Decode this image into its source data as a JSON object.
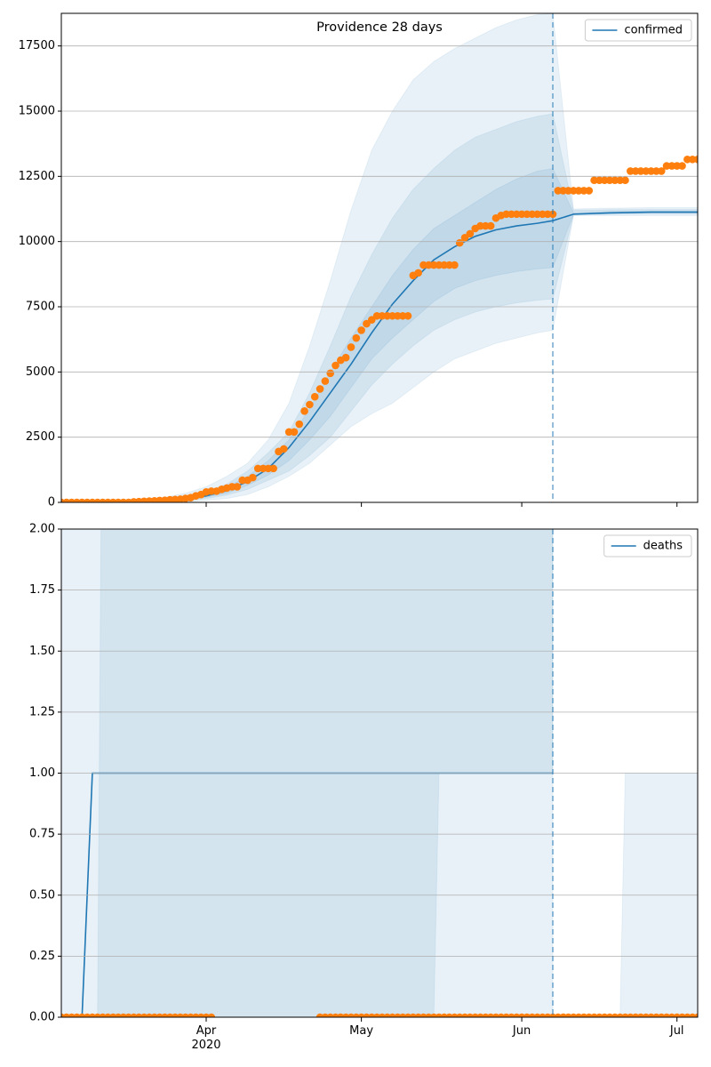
{
  "chart_data": [
    {
      "type": "line",
      "title": "Providence 28 days",
      "xlim": [
        64,
        187
      ],
      "ylim": [
        0,
        18750
      ],
      "yticks": [
        0,
        2500,
        5000,
        7500,
        10000,
        12500,
        15000,
        17500
      ],
      "grid": true,
      "legend": "upper right",
      "forecast_start": 159,
      "band_color": "#1f77b4",
      "series": [
        {
          "name": "confirmed",
          "color": "#1f77b4",
          "x": [
            64,
            70,
            76,
            82,
            88,
            92,
            96,
            100,
            104,
            108,
            112,
            116,
            120,
            124,
            128,
            132,
            136,
            140,
            144,
            148,
            152,
            156,
            159,
            163,
            170,
            178,
            187
          ],
          "values": [
            0,
            0,
            5,
            30,
            100,
            250,
            450,
            800,
            1300,
            2100,
            3100,
            4200,
            5300,
            6500,
            7600,
            8500,
            9300,
            9800,
            10200,
            10450,
            10600,
            10700,
            10800,
            11050,
            11100,
            11130,
            11130
          ]
        }
      ],
      "bands": [
        {
          "x": [
            64,
            70,
            76,
            82,
            88,
            92,
            96,
            100,
            104,
            108,
            112,
            116,
            120,
            124,
            128,
            132,
            136,
            140,
            144,
            148,
            152,
            156,
            159,
            163,
            170,
            178,
            187
          ],
          "lower": [
            0,
            0,
            0,
            0,
            30,
            80,
            150,
            300,
            600,
            1000,
            1500,
            2200,
            2900,
            3400,
            3800,
            4400,
            5000,
            5500,
            5800,
            6100,
            6300,
            6500,
            6600,
            11000,
            11000,
            11000,
            11000
          ],
          "upper": [
            0,
            10,
            40,
            120,
            350,
            600,
            1000,
            1500,
            2400,
            3800,
            6000,
            8500,
            11200,
            13500,
            15000,
            16200,
            16900,
            17400,
            17800,
            18200,
            18500,
            18700,
            18750,
            11250,
            11280,
            11300,
            11300
          ]
        },
        {
          "x": [
            64,
            70,
            76,
            82,
            88,
            92,
            96,
            100,
            104,
            108,
            112,
            116,
            120,
            124,
            128,
            132,
            136,
            140,
            144,
            148,
            152,
            156,
            159,
            163,
            170,
            178,
            187
          ],
          "lower": [
            0,
            0,
            0,
            10,
            60,
            150,
            280,
            500,
            850,
            1200,
            1800,
            2500,
            3500,
            4500,
            5300,
            6000,
            6600,
            7000,
            7300,
            7500,
            7650,
            7750,
            7800,
            11020,
            11050,
            11070,
            11070
          ],
          "upper": [
            0,
            5,
            20,
            70,
            200,
            420,
            700,
            1200,
            1900,
            2700,
            4200,
            6000,
            7900,
            9500,
            10900,
            12000,
            12800,
            13500,
            14000,
            14300,
            14600,
            14800,
            14900,
            11200,
            11220,
            11230,
            11230
          ]
        },
        {
          "x": [
            64,
            70,
            76,
            82,
            88,
            92,
            96,
            100,
            104,
            108,
            112,
            116,
            120,
            124,
            128,
            132,
            136,
            140,
            144,
            148,
            152,
            156,
            159,
            163,
            170,
            178,
            187
          ],
          "lower": [
            0,
            0,
            2,
            20,
            80,
            200,
            350,
            650,
            1050,
            1600,
            2400,
            3300,
            4400,
            5500,
            6300,
            7000,
            7700,
            8200,
            8500,
            8700,
            8850,
            8950,
            9000,
            11040,
            11080,
            11100,
            11100
          ],
          "upper": [
            0,
            2,
            10,
            45,
            140,
            320,
            580,
            1000,
            1600,
            2400,
            3600,
            5000,
            6300,
            7500,
            8700,
            9700,
            10500,
            11000,
            11500,
            12000,
            12400,
            12700,
            12800,
            11100,
            11150,
            11170,
            11170
          ]
        }
      ],
      "observed": {
        "color": "#ff7f0e",
        "x": [
          64,
          65,
          66,
          67,
          68,
          69,
          70,
          71,
          72,
          73,
          74,
          75,
          76,
          77,
          78,
          79,
          80,
          81,
          82,
          83,
          84,
          85,
          86,
          87,
          88,
          89,
          90,
          91,
          92,
          93,
          94,
          95,
          96,
          97,
          98,
          99,
          100,
          101,
          102,
          103,
          104,
          105,
          106,
          107,
          108,
          109,
          110,
          111,
          112,
          113,
          114,
          115,
          116,
          117,
          118,
          119,
          120,
          121,
          122,
          123,
          124,
          125,
          126,
          127,
          128,
          129,
          130,
          131,
          132,
          133,
          134,
          135,
          136,
          137,
          138,
          139,
          140,
          141,
          142,
          143,
          144,
          145,
          146,
          147,
          148,
          149,
          150,
          151,
          152,
          153,
          154,
          155,
          156,
          157,
          158,
          159,
          160,
          161,
          162,
          163,
          164,
          165,
          166,
          167,
          168,
          169,
          170,
          171,
          172,
          173,
          174,
          175,
          176,
          177,
          178,
          179,
          180,
          181,
          182,
          183,
          184,
          185,
          186,
          187
        ],
        "values": [
          0,
          0,
          0,
          0,
          0,
          0,
          0,
          0,
          0,
          0,
          0,
          0,
          0,
          0,
          20,
          30,
          40,
          50,
          60,
          70,
          80,
          100,
          110,
          120,
          150,
          180,
          250,
          300,
          400,
          430,
          430,
          500,
          550,
          600,
          600,
          850,
          850,
          950,
          1300,
          1300,
          1300,
          1300,
          1950,
          2050,
          2700,
          2700,
          3000,
          3500,
          3750,
          4050,
          4350,
          4650,
          4950,
          5250,
          5450,
          5550,
          5950,
          6300,
          6600,
          6850,
          7000,
          7150,
          7150,
          7150,
          7150,
          7150,
          7150,
          7150,
          8700,
          8800,
          9100,
          9100,
          9100,
          9100,
          9100,
          9100,
          9100,
          9950,
          10150,
          10300,
          10500,
          10600,
          10600,
          10600,
          10900,
          11000,
          11050,
          11050,
          11050,
          11050,
          11050,
          11050,
          11050,
          11050,
          11050,
          11050,
          11950,
          11950,
          11950,
          11950,
          11950,
          11950,
          11950,
          12350,
          12350,
          12350,
          12350,
          12350,
          12350,
          12350,
          12700,
          12700,
          12700,
          12700,
          12700,
          12700,
          12700,
          12900,
          12900,
          12900,
          12900,
          13150,
          13150,
          13150
        ]
      }
    },
    {
      "type": "line",
      "xlim": [
        64,
        187
      ],
      "ylim": [
        0,
        2
      ],
      "xticks": [
        {
          "value": 92,
          "label": "Apr\n2020"
        },
        {
          "value": 122,
          "label": "May"
        },
        {
          "value": 153,
          "label": "Jun"
        },
        {
          "value": 183,
          "label": "Jul"
        }
      ],
      "yticks": [
        {
          "value": 0,
          "label": "0.00"
        },
        {
          "value": 0.25,
          "label": "0.25"
        },
        {
          "value": 0.5,
          "label": "0.50"
        },
        {
          "value": 0.75,
          "label": "0.75"
        },
        {
          "value": 1,
          "label": "1.00"
        },
        {
          "value": 1.25,
          "label": "1.25"
        },
        {
          "value": 1.5,
          "label": "1.50"
        },
        {
          "value": 1.75,
          "label": "1.75"
        },
        {
          "value": 2,
          "label": "2.00"
        }
      ],
      "grid": true,
      "legend": "upper right",
      "forecast_start": 159,
      "band_color": "#1f77b4",
      "series": [
        {
          "name": "deaths",
          "color": "#1f77b4",
          "x": [
            64,
            68,
            70,
            159
          ],
          "values": [
            0,
            0,
            1,
            1
          ]
        }
      ],
      "bands": [
        {
          "x": [
            64,
            159
          ],
          "lower": [
            0,
            0
          ],
          "upper": [
            3,
            3
          ]
        },
        {
          "x": [
            64,
            71,
            72,
            136,
            137,
            159
          ],
          "lower": [
            0,
            0,
            0,
            0,
            1,
            1
          ],
          "upper": [
            0,
            0,
            3,
            3,
            3,
            3
          ]
        },
        {
          "x": [
            159,
            172,
            173,
            187
          ],
          "lower": [
            0,
            0,
            0,
            0
          ],
          "upper": [
            0,
            0,
            1,
            1
          ]
        }
      ],
      "observed": {
        "color": "#ff7f0e",
        "x": [
          64,
          65,
          66,
          67,
          68,
          69,
          70,
          71,
          72,
          73,
          74,
          75,
          76,
          77,
          78,
          79,
          80,
          81,
          82,
          83,
          84,
          85,
          86,
          87,
          88,
          89,
          90,
          91,
          92,
          93,
          94,
          95,
          96,
          97,
          98,
          99,
          100,
          101,
          102,
          103,
          104,
          105,
          106,
          107,
          108,
          109,
          110,
          111,
          112,
          113,
          114,
          115,
          116,
          117,
          118,
          119,
          120,
          121,
          122,
          123,
          124,
          125,
          126,
          127,
          128,
          129,
          130,
          131,
          132,
          133,
          134,
          135,
          136,
          137,
          138,
          139,
          140,
          141,
          142,
          143,
          144,
          145,
          146,
          147,
          148,
          149,
          150,
          151,
          152,
          153,
          154,
          155,
          156,
          157,
          158,
          159,
          160,
          161,
          162,
          163,
          164,
          165,
          166,
          167,
          168,
          169,
          170,
          171,
          172,
          173,
          174,
          175,
          176,
          177,
          178,
          179,
          180,
          181,
          182,
          183,
          184,
          185,
          186,
          187
        ],
        "values": [
          0,
          0,
          0,
          0,
          0,
          0,
          0,
          0,
          0,
          0,
          0,
          0,
          0,
          0,
          0,
          0,
          0,
          0,
          0,
          0,
          0,
          0,
          0,
          0,
          0,
          0,
          0,
          0,
          0,
          0,
          null,
          null,
          null,
          null,
          null,
          null,
          null,
          null,
          null,
          null,
          null,
          null,
          null,
          null,
          null,
          null,
          null,
          null,
          null,
          null,
          0,
          0,
          0,
          0,
          0,
          0,
          0,
          0,
          0,
          0,
          0,
          0,
          0,
          0,
          0,
          0,
          0,
          0,
          0,
          0,
          0,
          0,
          0,
          0,
          0,
          0,
          0,
          0,
          0,
          0,
          0,
          0,
          0,
          0,
          0,
          0,
          0,
          0,
          0,
          0,
          0,
          0,
          0,
          0,
          0,
          0,
          0,
          0,
          0,
          0,
          0,
          0,
          0,
          0,
          0,
          0,
          0,
          0,
          0,
          0,
          0,
          0,
          0,
          0,
          0,
          0,
          0,
          0,
          0,
          0,
          0,
          0,
          0,
          0
        ]
      }
    }
  ]
}
